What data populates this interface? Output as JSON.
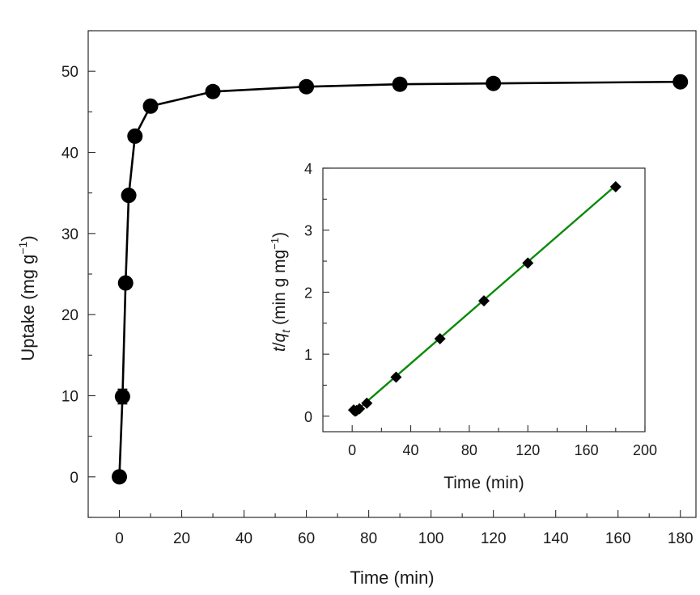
{
  "chart_data": [
    {
      "type": "line",
      "title": "",
      "xlabel": "Time (min)",
      "ylabel_main": "Uptake (mg g",
      "ylabel_sup": "−1",
      "ylabel_close": ")",
      "xlim": [
        -10,
        185
      ],
      "ylim": [
        -5,
        55
      ],
      "xticks": [
        0,
        20,
        40,
        60,
        80,
        100,
        120,
        140,
        160,
        180
      ],
      "yticks": [
        0,
        10,
        20,
        30,
        40,
        50
      ],
      "grid": false,
      "series": [
        {
          "x": [
            0,
            1,
            2,
            3,
            5,
            10,
            30,
            60,
            90,
            120,
            180
          ],
          "y": [
            0,
            9.9,
            23.9,
            34.7,
            42.0,
            45.7,
            47.5,
            48.1,
            48.4,
            48.5,
            48.7
          ],
          "yerr": [
            0,
            0.9,
            0.4,
            0.4,
            0.4,
            0.4,
            0.4,
            0.4,
            0.4,
            0.4,
            0.4
          ],
          "color": "#000000",
          "marker": "circle"
        }
      ]
    },
    {
      "type": "scatter",
      "title": "",
      "xlabel": "Time (min)",
      "ylabel_t": "t",
      "ylabel_slash": "/",
      "ylabel_q": "q",
      "ylabel_sub": "t",
      "ylabel_units": " (min g mg",
      "ylabel_sup": "−1",
      "ylabel_close": ")",
      "xlim": [
        -20,
        200
      ],
      "ylim": [
        -0.25,
        4
      ],
      "xticks": [
        0,
        40,
        80,
        120,
        160,
        200
      ],
      "yticks": [
        0,
        1,
        2,
        3,
        4
      ],
      "grid": false,
      "series": [
        {
          "x": [
            1,
            2,
            3,
            5,
            10,
            30,
            60,
            90,
            120,
            180
          ],
          "y": [
            0.1,
            0.08,
            0.09,
            0.12,
            0.21,
            0.63,
            1.25,
            1.86,
            2.47,
            3.7
          ],
          "color": "#000000",
          "marker": "diamond"
        }
      ],
      "fit_line": {
        "x": [
          0,
          180
        ],
        "y": [
          0.03,
          3.72
        ],
        "color": "#0a8a0a"
      }
    }
  ]
}
